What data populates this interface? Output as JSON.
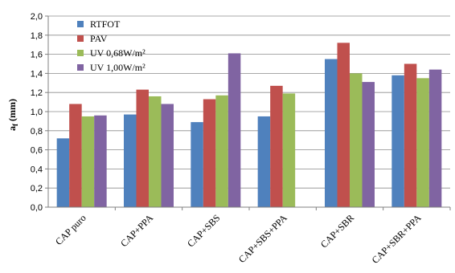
{
  "chart_data": {
    "type": "bar",
    "title": "",
    "xlabel": "",
    "ylabel": "a_f (mm)",
    "ylabel_main": "a",
    "ylabel_sub": "f",
    "ylabel_rest": " (mm)",
    "ylim": [
      0,
      2.0
    ],
    "ytick_step": 0.2,
    "yticks": [
      "0,0",
      "0,2",
      "0,4",
      "0,6",
      "0,8",
      "1,0",
      "1,2",
      "1,4",
      "1,6",
      "1,8",
      "2,0"
    ],
    "grid": true,
    "legend_position": "top-left",
    "categories": [
      "CAP puro",
      "CAP+PPA",
      "CAP+SBS",
      "CAP+SBS+PPA",
      "CAP+SBR",
      "CAP+SBR+PPA"
    ],
    "series": [
      {
        "name": "RTFOT",
        "color": "#4f81bd",
        "values": [
          0.72,
          0.97,
          0.89,
          0.95,
          1.55,
          1.38
        ]
      },
      {
        "name": "PAV",
        "color": "#c0504d",
        "values": [
          1.08,
          1.23,
          1.13,
          1.27,
          1.72,
          1.5
        ]
      },
      {
        "name": "UV 0,68W/m²",
        "color": "#9bbb59",
        "values": [
          0.95,
          1.16,
          1.17,
          1.19,
          1.4,
          1.35
        ]
      },
      {
        "name": "UV 1,00W/m²",
        "color": "#8064a2",
        "values": [
          0.96,
          1.08,
          1.61,
          null,
          1.31,
          1.44
        ]
      }
    ]
  }
}
